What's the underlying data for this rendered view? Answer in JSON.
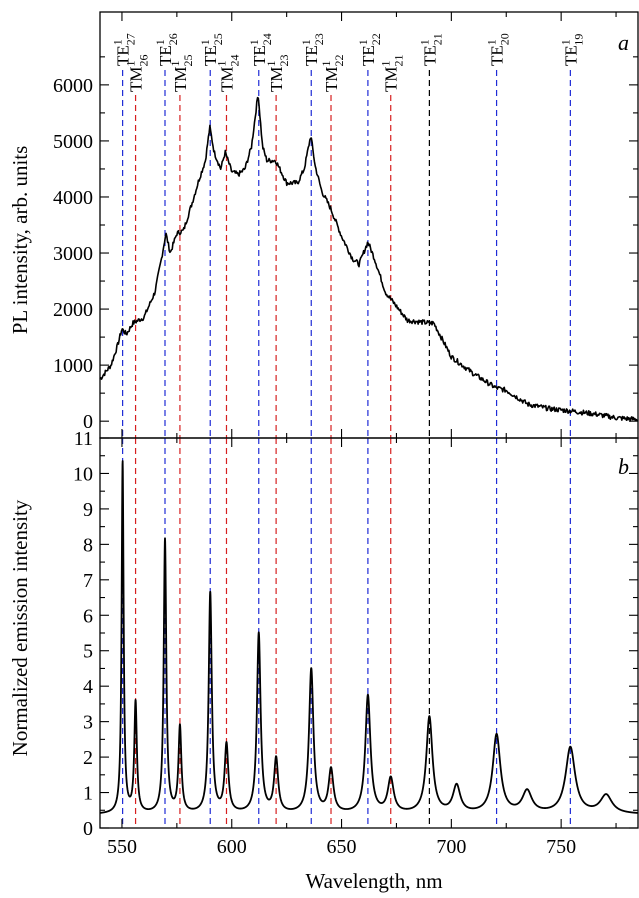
{
  "chart_data": [
    {
      "panel": "a",
      "type": "line",
      "xlabel": "Wavelength, nm",
      "ylabel": "PL intensity, arb. units",
      "xlim": [
        540,
        785
      ],
      "ylim": [
        -300,
        7300
      ],
      "x_ticks": [
        550,
        600,
        650,
        700,
        750
      ],
      "y_ticks": [
        0,
        1000,
        2000,
        3000,
        4000,
        5000,
        6000
      ],
      "series": [
        {
          "color": "#000000",
          "x": [
            540,
            545,
            548,
            550,
            552,
            555,
            560,
            565,
            568,
            570,
            572,
            575,
            578,
            582,
            585,
            588,
            590,
            592,
            595,
            597,
            600,
            603,
            606,
            609,
            612,
            614,
            616,
            620,
            625,
            630,
            633,
            636,
            638,
            641,
            645,
            650,
            655,
            658,
            662,
            665,
            670,
            680,
            690,
            692,
            700,
            710,
            720,
            725,
            735,
            745,
            755,
            765,
            775,
            785
          ],
          "y": [
            750,
            1000,
            1350,
            1650,
            1550,
            1750,
            1850,
            2300,
            2900,
            3350,
            3000,
            3350,
            3400,
            3900,
            4300,
            4650,
            5250,
            4800,
            4500,
            4800,
            4450,
            4400,
            4500,
            4900,
            5850,
            4900,
            4650,
            4650,
            4250,
            4250,
            4500,
            5100,
            4550,
            4100,
            3800,
            3300,
            2900,
            2800,
            3200,
            2900,
            2300,
            1800,
            1750,
            1750,
            1150,
            850,
            600,
            550,
            300,
            220,
            180,
            130,
            60,
            30
          ]
        }
      ],
      "annotations": [
        {
          "mode": "TE",
          "order": "27",
          "x": 550.3,
          "line_color": "#1f2bd6"
        },
        {
          "mode": "TM",
          "order": "26",
          "x": 556.2,
          "line_color": "#d62020"
        },
        {
          "mode": "TE",
          "order": "26",
          "x": 569.6,
          "line_color": "#1f2bd6"
        },
        {
          "mode": "TM",
          "order": "25",
          "x": 576.4,
          "line_color": "#d62020"
        },
        {
          "mode": "TE",
          "order": "25",
          "x": 590.2,
          "line_color": "#1f2bd6"
        },
        {
          "mode": "TM",
          "order": "24",
          "x": 597.6,
          "line_color": "#d62020"
        },
        {
          "mode": "TE",
          "order": "24",
          "x": 612.3,
          "line_color": "#1f2bd6"
        },
        {
          "mode": "TM",
          "order": "23",
          "x": 620.2,
          "line_color": "#d62020"
        },
        {
          "mode": "TE",
          "order": "23",
          "x": 636.2,
          "line_color": "#1f2bd6"
        },
        {
          "mode": "TM",
          "order": "22",
          "x": 645.2,
          "line_color": "#d62020"
        },
        {
          "mode": "TE",
          "order": "22",
          "x": 662.0,
          "line_color": "#1f2bd6"
        },
        {
          "mode": "TM",
          "order": "21",
          "x": 672.4,
          "line_color": "#d62020"
        },
        {
          "mode": "TE",
          "order": "21",
          "x": 690.0,
          "line_color": "#000000"
        },
        {
          "mode": "TE",
          "order": "20",
          "x": 720.6,
          "line_color": "#1f2bd6"
        },
        {
          "mode": "TE",
          "order": "19",
          "x": 754.2,
          "line_color": "#1f2bd6"
        }
      ],
      "annotation_superscript": "1"
    },
    {
      "panel": "b",
      "type": "line",
      "xlabel": "Wavelength, nm",
      "ylabel": "Normalized emission intensity",
      "xlim": [
        540,
        785
      ],
      "ylim": [
        0,
        11
      ],
      "x_ticks": [
        550,
        600,
        650,
        700,
        750
      ],
      "y_ticks": [
        0,
        1,
        2,
        3,
        4,
        5,
        6,
        7,
        8,
        9,
        10,
        11
      ],
      "series": [
        {
          "color": "#000000",
          "peaks": [
            {
              "x": 550.3,
              "height": 10.3,
              "width": 0.55
            },
            {
              "x": 556.2,
              "height": 3.5,
              "width": 0.7
            },
            {
              "x": 569.6,
              "height": 8.1,
              "width": 0.7
            },
            {
              "x": 576.4,
              "height": 2.8,
              "width": 0.8
            },
            {
              "x": 590.2,
              "height": 6.6,
              "width": 0.85
            },
            {
              "x": 597.6,
              "height": 2.3,
              "width": 1.0
            },
            {
              "x": 612.3,
              "height": 5.45,
              "width": 1.0
            },
            {
              "x": 620.2,
              "height": 1.9,
              "width": 1.1
            },
            {
              "x": 636.2,
              "height": 4.45,
              "width": 1.2
            },
            {
              "x": 645.2,
              "height": 1.6,
              "width": 1.3
            },
            {
              "x": 662.0,
              "height": 3.7,
              "width": 1.4
            },
            {
              "x": 672.4,
              "height": 1.35,
              "width": 1.6
            },
            {
              "x": 690.0,
              "height": 3.1,
              "width": 1.7
            },
            {
              "x": 702.4,
              "height": 1.15,
              "width": 2.0
            },
            {
              "x": 720.6,
              "height": 2.6,
              "width": 2.1
            },
            {
              "x": 734.5,
              "height": 1.0,
              "width": 2.6
            },
            {
              "x": 754.2,
              "height": 2.25,
              "width": 2.6
            },
            {
              "x": 770.5,
              "height": 0.9,
              "width": 3.2
            }
          ],
          "baseline": 0.38
        }
      ]
    }
  ]
}
